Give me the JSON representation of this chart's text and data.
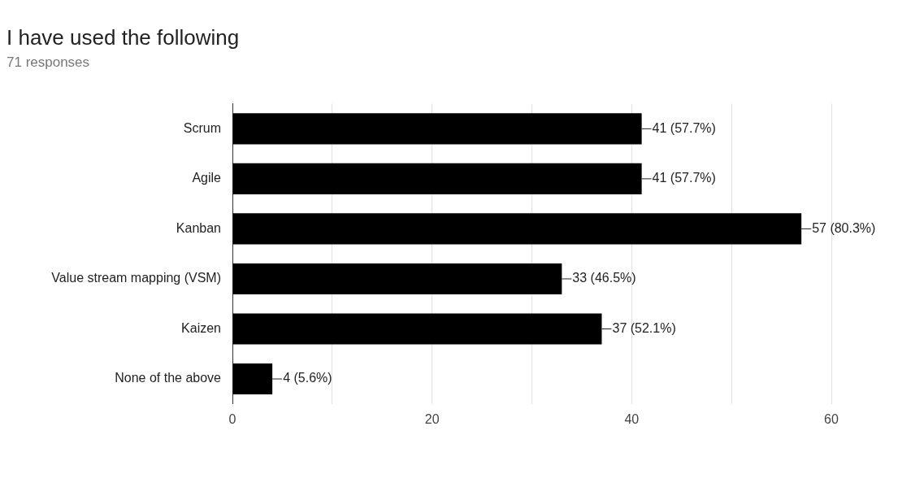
{
  "chart_data": {
    "type": "bar",
    "orientation": "horizontal",
    "title": "I have used the following",
    "subtitle": "71 responses",
    "categories": [
      "Scrum",
      "Agile",
      "Kanban",
      "Value stream mapping (VSM)",
      "Kaizen",
      "None of the above"
    ],
    "values": [
      41,
      41,
      57,
      33,
      37,
      4
    ],
    "color": "#000000",
    "value_labels": [
      "41 (57.7%)",
      "41 (57.7%)",
      "57 (80.3%)",
      "33 (46.5%)",
      "37 (52.1%)",
      "4 (5.6%)"
    ],
    "xlim": [
      0,
      60
    ],
    "xticks": [
      0,
      {
        "value": 10,
        "label": null
      },
      20,
      {
        "value": 30,
        "label": null
      },
      40,
      {
        "value": 50,
        "label": null
      },
      60
    ],
    "grid": "x",
    "legend": false
  }
}
